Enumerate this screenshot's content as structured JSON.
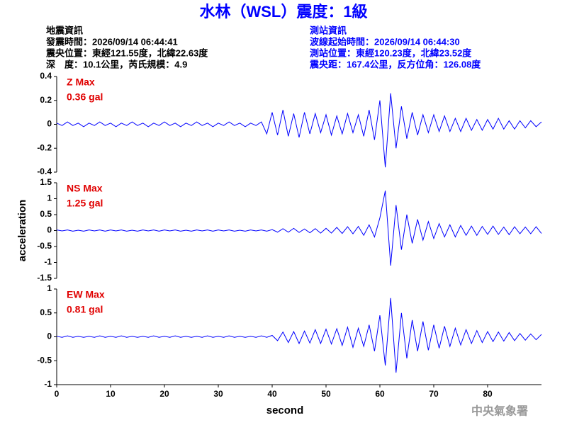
{
  "header": {
    "title": "水林（WSL）震度：1級",
    "left": [
      "地震資訊",
      "發震時間：2026/09/14 06:44:41",
      "震央位置：東經121.55度，北緯22.63度",
      "深　度：10.1公里，芮氏規模：4.9"
    ],
    "right": [
      "測站資訊",
      "波線起始時間：2026/09/14 06:44:30",
      "測站位置：東經120.23度，北緯23.52度",
      "震央距：167.4公里，反方位角：126.08度"
    ]
  },
  "footer": "中央氣象署",
  "chart_data": [
    {
      "type": "line",
      "annotations": [
        "Z Max",
        "0.36 gal"
      ],
      "x": [
        0,
        1,
        2,
        3,
        4,
        5,
        6,
        7,
        8,
        9,
        10,
        11,
        12,
        13,
        14,
        15,
        16,
        17,
        18,
        19,
        20,
        21,
        22,
        23,
        24,
        25,
        26,
        27,
        28,
        29,
        30,
        31,
        32,
        33,
        34,
        35,
        36,
        37,
        38,
        39,
        40,
        41,
        42,
        43,
        44,
        45,
        46,
        47,
        48,
        49,
        50,
        51,
        52,
        53,
        54,
        55,
        56,
        57,
        58,
        59,
        60,
        61,
        62,
        63,
        64,
        65,
        66,
        67,
        68,
        69,
        70,
        71,
        72,
        73,
        74,
        75,
        76,
        77,
        78,
        79,
        80,
        81,
        82,
        83,
        84,
        85,
        86,
        87,
        88,
        89,
        90
      ],
      "series": [
        {
          "color": "#0000ff",
          "values": [
            0.01,
            -0.01,
            0.02,
            -0.01,
            0.01,
            -0.02,
            0.01,
            -0.01,
            0.02,
            -0.01,
            0.01,
            -0.02,
            0.01,
            -0.01,
            0.02,
            -0.01,
            0.01,
            -0.02,
            0.01,
            -0.01,
            0.02,
            -0.01,
            0.01,
            -0.02,
            0.01,
            -0.01,
            0.02,
            -0.01,
            0.01,
            -0.02,
            0.01,
            -0.01,
            0.02,
            -0.01,
            0.01,
            -0.02,
            0.01,
            -0.01,
            0.02,
            -0.08,
            0.1,
            -0.09,
            0.12,
            -0.1,
            0.09,
            -0.11,
            0.1,
            -0.08,
            0.09,
            -0.07,
            0.08,
            -0.09,
            0.07,
            -0.08,
            0.09,
            -0.07,
            0.08,
            -0.1,
            0.12,
            -0.13,
            0.2,
            -0.36,
            0.26,
            -0.2,
            0.15,
            -0.12,
            0.1,
            -0.09,
            0.08,
            -0.07,
            0.08,
            -0.06,
            0.07,
            -0.06,
            0.05,
            -0.06,
            0.05,
            -0.05,
            0.04,
            -0.05,
            0.04,
            -0.04,
            0.05,
            -0.04,
            0.03,
            -0.04,
            0.03,
            -0.03,
            0.03,
            -0.02,
            0.02
          ]
        }
      ],
      "xlim": [
        0,
        90
      ],
      "ylim": [
        -0.4,
        0.4
      ],
      "yticks": [
        0.4,
        0.2,
        0,
        -0.2,
        -0.4
      ]
    },
    {
      "type": "line",
      "annotations": [
        "NS Max",
        "1.25 gal"
      ],
      "ylabel": "acceleration",
      "x": [
        0,
        1,
        2,
        3,
        4,
        5,
        6,
        7,
        8,
        9,
        10,
        11,
        12,
        13,
        14,
        15,
        16,
        17,
        18,
        19,
        20,
        21,
        22,
        23,
        24,
        25,
        26,
        27,
        28,
        29,
        30,
        31,
        32,
        33,
        34,
        35,
        36,
        37,
        38,
        39,
        40,
        41,
        42,
        43,
        44,
        45,
        46,
        47,
        48,
        49,
        50,
        51,
        52,
        53,
        54,
        55,
        56,
        57,
        58,
        59,
        60,
        61,
        62,
        63,
        64,
        65,
        66,
        67,
        68,
        69,
        70,
        71,
        72,
        73,
        74,
        75,
        76,
        77,
        78,
        79,
        80,
        81,
        82,
        83,
        84,
        85,
        86,
        87,
        88,
        89,
        90
      ],
      "series": [
        {
          "color": "#0000ff",
          "values": [
            0.02,
            -0.01,
            0.02,
            -0.02,
            0.01,
            -0.02,
            0.02,
            -0.01,
            0.02,
            -0.02,
            0.02,
            -0.01,
            0.02,
            -0.02,
            0.01,
            -0.02,
            0.02,
            -0.01,
            0.02,
            -0.02,
            0.02,
            -0.01,
            0.02,
            -0.02,
            0.01,
            -0.02,
            0.02,
            -0.01,
            0.02,
            -0.02,
            0.02,
            -0.01,
            0.02,
            -0.02,
            0.01,
            -0.02,
            0.02,
            -0.01,
            0.02,
            -0.02,
            0.03,
            -0.05,
            0.06,
            -0.05,
            0.07,
            -0.06,
            0.05,
            -0.07,
            0.06,
            -0.08,
            0.07,
            -0.08,
            0.1,
            -0.09,
            0.12,
            -0.1,
            0.13,
            -0.15,
            0.18,
            -0.2,
            0.4,
            1.25,
            -1.1,
            0.8,
            -0.6,
            0.5,
            -0.4,
            0.35,
            -0.3,
            0.28,
            -0.25,
            0.22,
            -0.2,
            0.18,
            -0.2,
            0.16,
            -0.15,
            0.14,
            -0.15,
            0.13,
            -0.12,
            0.14,
            -0.12,
            0.11,
            -0.13,
            0.12,
            -0.1,
            0.11,
            -0.1,
            0.12,
            -0.09
          ]
        }
      ],
      "xlim": [
        0,
        90
      ],
      "ylim": [
        -1.5,
        1.5
      ],
      "yticks": [
        1.5,
        1,
        0.5,
        0,
        -0.5,
        -1,
        -1.5
      ]
    },
    {
      "type": "line",
      "annotations": [
        "EW Max",
        "0.81 gal"
      ],
      "xlabel": "second",
      "x": [
        0,
        1,
        2,
        3,
        4,
        5,
        6,
        7,
        8,
        9,
        10,
        11,
        12,
        13,
        14,
        15,
        16,
        17,
        18,
        19,
        20,
        21,
        22,
        23,
        24,
        25,
        26,
        27,
        28,
        29,
        30,
        31,
        32,
        33,
        34,
        35,
        36,
        37,
        38,
        39,
        40,
        41,
        42,
        43,
        44,
        45,
        46,
        47,
        48,
        49,
        50,
        51,
        52,
        53,
        54,
        55,
        56,
        57,
        58,
        59,
        60,
        61,
        62,
        63,
        64,
        65,
        66,
        67,
        68,
        69,
        70,
        71,
        72,
        73,
        74,
        75,
        76,
        77,
        78,
        79,
        80,
        81,
        82,
        83,
        84,
        85,
        86,
        87,
        88,
        89,
        90
      ],
      "series": [
        {
          "color": "#0000ff",
          "values": [
            0.01,
            -0.01,
            0.02,
            -0.01,
            0.01,
            -0.01,
            0.01,
            -0.01,
            0.02,
            -0.01,
            0.01,
            -0.01,
            0.02,
            -0.01,
            0.01,
            -0.01,
            0.01,
            -0.01,
            0.02,
            -0.01,
            0.01,
            -0.01,
            0.02,
            -0.01,
            0.01,
            -0.01,
            0.01,
            -0.01,
            0.02,
            -0.01,
            0.01,
            -0.01,
            0.02,
            -0.01,
            0.01,
            -0.01,
            0.01,
            -0.01,
            0.02,
            -0.01,
            0.03,
            -0.08,
            0.1,
            -0.12,
            0.11,
            -0.14,
            0.12,
            -0.13,
            0.15,
            -0.14,
            0.16,
            -0.15,
            0.17,
            -0.18,
            0.2,
            -0.22,
            0.18,
            -0.2,
            0.25,
            -0.3,
            0.45,
            -0.6,
            0.81,
            -0.75,
            0.5,
            -0.45,
            0.35,
            -0.3,
            0.32,
            -0.28,
            0.25,
            -0.24,
            0.22,
            -0.2,
            0.18,
            -0.17,
            0.15,
            -0.14,
            0.13,
            -0.12,
            0.11,
            -0.1,
            0.1,
            -0.09,
            0.09,
            -0.08,
            0.07,
            -0.07,
            0.06,
            -0.06,
            0.05
          ]
        }
      ],
      "xlim": [
        0,
        90
      ],
      "ylim": [
        -1,
        1
      ],
      "yticks": [
        1,
        0.5,
        0,
        -0.5,
        -1
      ],
      "xticks": [
        0,
        10,
        20,
        30,
        40,
        50,
        60,
        70,
        80
      ]
    }
  ]
}
